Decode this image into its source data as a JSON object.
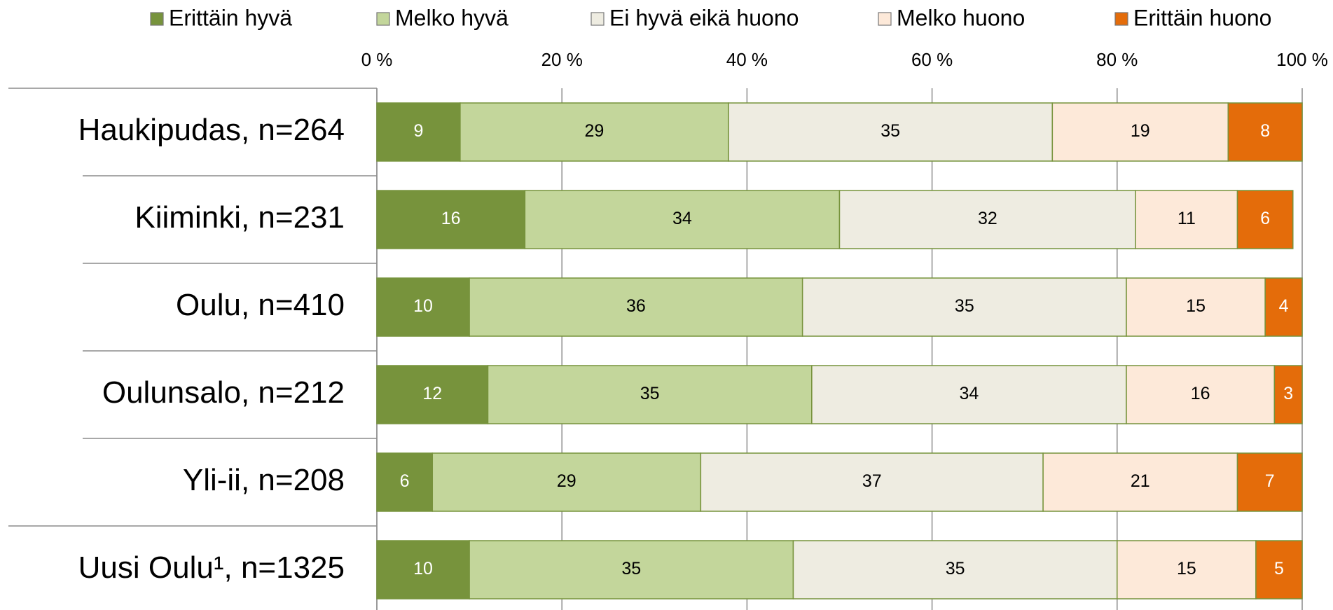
{
  "chart_data": {
    "type": "stacked_bar_horizontal",
    "categories": [
      "Haukipudas, n=264",
      "Kiiminki, n=231",
      "Oulu, n=410",
      "Oulunsalo, n=212",
      "Yli-ii, n=208",
      "Uusi Oulu¹, n=1325"
    ],
    "series": [
      {
        "name": "Erittäin hyvä",
        "color": "#77933c",
        "values": [
          9,
          16,
          10,
          12,
          6,
          10
        ]
      },
      {
        "name": "Melko hyvä",
        "color": "#c3d69b",
        "values": [
          29,
          34,
          36,
          35,
          29,
          35
        ]
      },
      {
        "name": "Ei hyvä eikä huono",
        "color": "#eeece1",
        "values": [
          35,
          32,
          35,
          34,
          37,
          35
        ]
      },
      {
        "name": "Melko huono",
        "color": "#fde9d9",
        "values": [
          19,
          11,
          15,
          16,
          21,
          15
        ]
      },
      {
        "name": "Erittäin huono",
        "color": "#e46c0a",
        "values": [
          8,
          6,
          4,
          3,
          7,
          5
        ]
      }
    ],
    "xlim": [
      0,
      100
    ],
    "xticks": [
      {
        "value": 0,
        "label": "0 %"
      },
      {
        "value": 20,
        "label": "20 %"
      },
      {
        "value": 40,
        "label": "40 %"
      },
      {
        "value": 60,
        "label": "60 %"
      },
      {
        "value": 80,
        "label": "80 %"
      },
      {
        "value": 100,
        "label": "100 %"
      }
    ],
    "grid": true,
    "legend": "top"
  }
}
